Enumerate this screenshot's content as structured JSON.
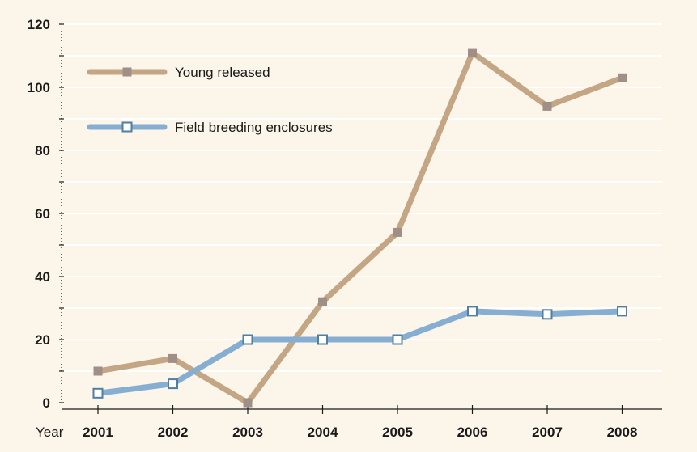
{
  "chart_data": {
    "type": "line",
    "title": "",
    "xlabel": "Year",
    "ylabel": "",
    "categories": [
      "2001",
      "2002",
      "2003",
      "2004",
      "2005",
      "2006",
      "2007",
      "2008"
    ],
    "ylim": [
      0,
      120
    ],
    "y_ticks": [
      "0",
      "20",
      "40",
      "60",
      "80",
      "100",
      "120"
    ],
    "grid": true,
    "legend_position": "top-left",
    "series": [
      {
        "name": "Young released",
        "values": [
          10,
          14,
          0,
          32,
          54,
          111,
          94,
          103
        ],
        "color": "#c4a584",
        "marker_color": "#9f8f86",
        "marker": "filled-square"
      },
      {
        "name": "Field breeding enclosures",
        "values": [
          3,
          6,
          20,
          20,
          20,
          29,
          28,
          29
        ],
        "color": "#86aed2",
        "marker_color": "#4f7fa3",
        "marker": "open-square"
      }
    ],
    "colors": {
      "background": "#fbf5ea",
      "grid": "#ffffff",
      "axis": "#1a1a1a"
    }
  }
}
